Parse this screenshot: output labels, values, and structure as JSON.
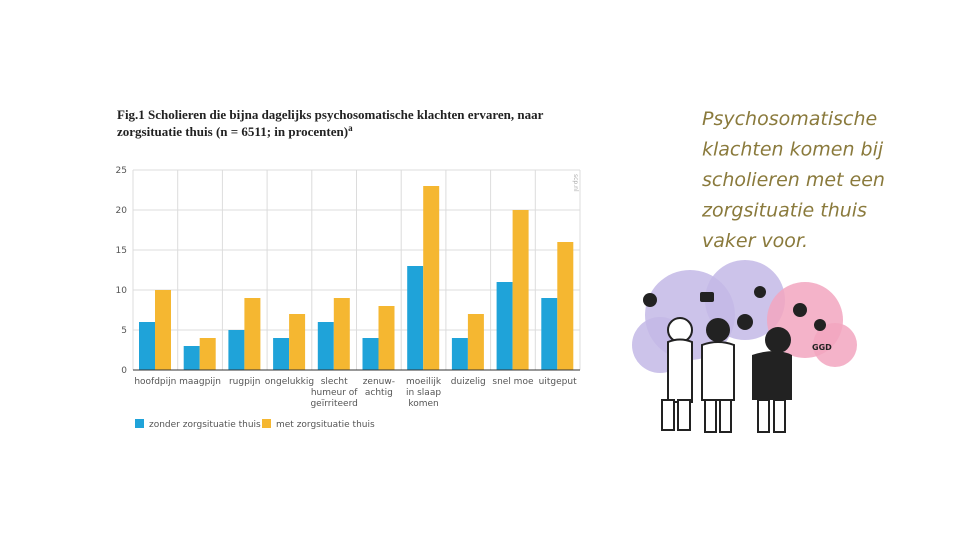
{
  "chart_data": {
    "type": "bar",
    "title": [
      "Fig.1 Scholieren die bijna dagelijks psychosomatische klachten ervaren, naar",
      "zorgsituatie thuis (n = 6511; in procenten)"
    ],
    "title_note": "a",
    "source_mark": "scp.nl",
    "categories": [
      [
        "hoofdpijn"
      ],
      [
        "maagpijn"
      ],
      [
        "rugpijn"
      ],
      [
        "ongelukkig"
      ],
      [
        "slecht",
        "humeur of",
        "geïrriteerd"
      ],
      [
        "zenuw-",
        "achtig"
      ],
      [
        "moeilijk",
        "in slaap",
        "komen"
      ],
      [
        "duizelig"
      ],
      [
        "snel moe"
      ],
      [
        "uitgeput"
      ]
    ],
    "series": [
      {
        "name": "zonder zorgsituatie thuis",
        "color": "#1fa3d9",
        "values": [
          6,
          3,
          5,
          4,
          6,
          4,
          13,
          4,
          11,
          9
        ]
      },
      {
        "name": "met zorgsituatie thuis",
        "color": "#f5b731",
        "values": [
          10,
          4,
          9,
          7,
          9,
          8,
          23,
          7,
          20,
          16
        ]
      }
    ],
    "ylim": [
      0,
      25
    ],
    "yticks": [
      0,
      5,
      10,
      15,
      20,
      25
    ],
    "grid": true,
    "legend": "bottom-left"
  },
  "side_text": {
    "lines": [
      "Psychosomatische",
      "klachten komen bij",
      "scholieren met een",
      "zorgsituatie thuis",
      "vaker voor."
    ],
    "color": "#8a7a3c"
  },
  "illustration": {
    "label": "GGD"
  }
}
